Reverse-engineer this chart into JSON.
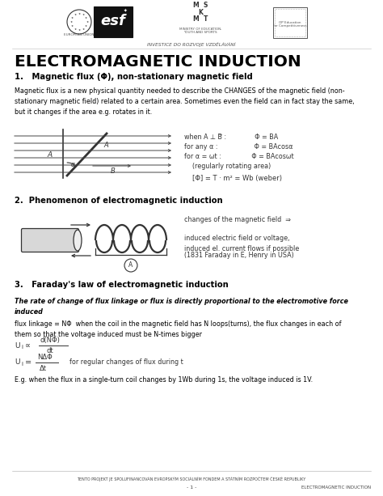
{
  "title": "ELECTROMAGNETIC INDUCTION",
  "subtitle": "INVESTICE DO ROZVOJE VZDĚLÁVÁNÍ",
  "section1_heading": "1.   Magnetic flux (Φ), non-stationary magnetic field",
  "section1_body": "Magnetic flux is a new physical quantity needed to describe the CHANGES of the magnetic field (non-\nstationary magnetic field) related to a certain area. Sometimes even the field can in fact stay the same,\nbut it changes if the area e.g. rotates in it.",
  "flux_eq1": "when A ⊥ B⃗ :              Φ = BA",
  "flux_eq2": "for any α :                  Φ = BAcosα",
  "flux_eq3": "for α = ωt :               Φ = BAcosωt",
  "flux_eq3b": "    (regularly rotating area)",
  "flux_unit": "[Φ] = T · m² = Wb (weber)",
  "section2_heading": "2.  Phenomenon of electromagnetic induction",
  "phenom1": "changes of the magnetic field  ⇒",
  "phenom2": "induced electric field or voltage,\ninduced el. current flows if possible",
  "phenom3": "(1831 Faraday in E, Henry in USA)",
  "section3_heading": "3.   Faraday's law of electromagnetic induction",
  "faraday_italic": "The rate of change of flux linkage or flux is directly proportional to the electromotive force\ninduced",
  "faraday_body1": "flux linkage = NΦ  when the coil in the magnetic field has N loops(turns), the flux changes in each of\nthem so that the voltage induced must be N-times bigger",
  "formula1_frac_num": "d(NΦ)",
  "formula1_frac_den": "dt",
  "formula2_frac_num": "NΔΦ",
  "formula2_frac_den": "Δt",
  "formula2_right": "    for regular changes of flux during t",
  "eg_text": "E.g. when the flux in a single-turn coil changes by 1Wb during 1s, the voltage induced is 1V.",
  "footer1": "TENTO PROJEKT JE SPOLUFINANCOVÁN EVROPSKÝM SOCIÁLNÍM FONDEM A STÁTNÍM ROZPOČTEM ČESKÉ REPUBLIKY",
  "footer2": "- 1 -",
  "footer3": "ELECTROMAGNETIC INDUCTION",
  "bg_color": "#ffffff",
  "text_color": "#000000",
  "gray_color": "#444444"
}
